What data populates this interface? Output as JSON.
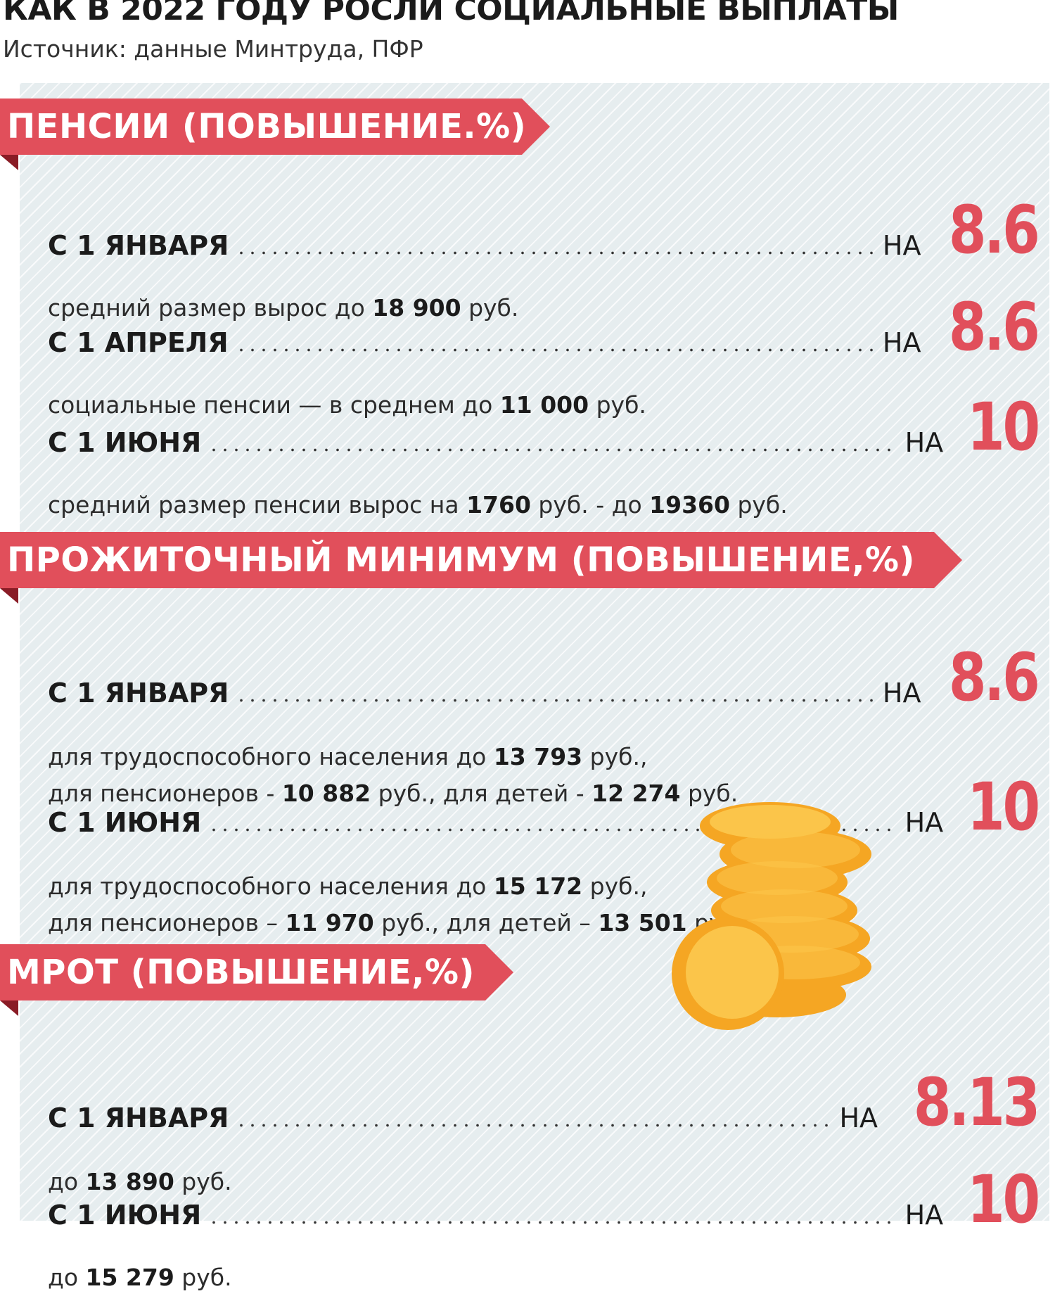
{
  "title": "КАК В 2022 ГОДУ РОСЛИ СОЦИАЛЬНЫЕ ВЫПЛАТЫ",
  "source": "Источник: данные Минтруда, ПФР",
  "na": "НА",
  "pensions": {
    "heading": "ПЕНСИИ (ПОВЫШЕНИЕ.%)",
    "rows": [
      {
        "label": "С 1 ЯНВАРЯ",
        "value": "8.6",
        "desc": [
          "средний размер вырос до ",
          {
            "b": "18 900"
          },
          " руб."
        ]
      },
      {
        "label": "С 1 АПРЕЛЯ",
        "value": "8.6",
        "desc": [
          "социальные пенсии — в среднем до ",
          {
            "b": "11 000"
          },
          " руб."
        ]
      },
      {
        "label": "С 1 ИЮНЯ",
        "value": "10",
        "desc": [
          "средний размер пенсии вырос на ",
          {
            "b": "1760"
          },
          " руб. - до ",
          {
            "b": "19360"
          },
          " руб."
        ]
      }
    ]
  },
  "minimum": {
    "heading": "ПРОЖИТОЧНЫЙ МИНИМУМ (ПОВЫШЕНИЕ,%)",
    "rows": [
      {
        "label": "С 1 ЯНВАРЯ",
        "value": "8.6",
        "desc": [
          "для трудоспособного населения до ",
          {
            "b": "13 793"
          },
          " руб.,"
        ],
        "desc2": [
          "для пенсионеров - ",
          {
            "b": "10 882"
          },
          " руб., для детей - ",
          {
            "b": "12 274"
          },
          " руб."
        ]
      },
      {
        "label": "С 1 ИЮНЯ",
        "value": "10",
        "desc": [
          "для трудоспособного населения до ",
          {
            "b": "15 172"
          },
          " руб.,"
        ],
        "desc2": [
          "для пенсионеров – ",
          {
            "b": "11 970"
          },
          " руб., для детей – ",
          {
            "b": "13 501"
          },
          " руб."
        ]
      }
    ]
  },
  "mrot": {
    "heading": "МРОТ (ПОВЫШЕНИЕ,%)",
    "rows": [
      {
        "label": "С 1 ЯНВАРЯ",
        "value": "8.13",
        "desc": [
          "до ",
          {
            "b": "13 890"
          },
          " руб."
        ]
      },
      {
        "label": "С 1 ИЮНЯ",
        "value": "10",
        "desc": [
          "до ",
          {
            "b": "15 279"
          },
          " руб."
        ]
      }
    ]
  },
  "colors": {
    "accent": "#e14f5b",
    "ribbon_fold": "#8a1c26",
    "panel": "#e6edef",
    "coin": "#f5a623",
    "coin_face": "#fbc54a"
  },
  "illustration": "coins-stack-icon"
}
